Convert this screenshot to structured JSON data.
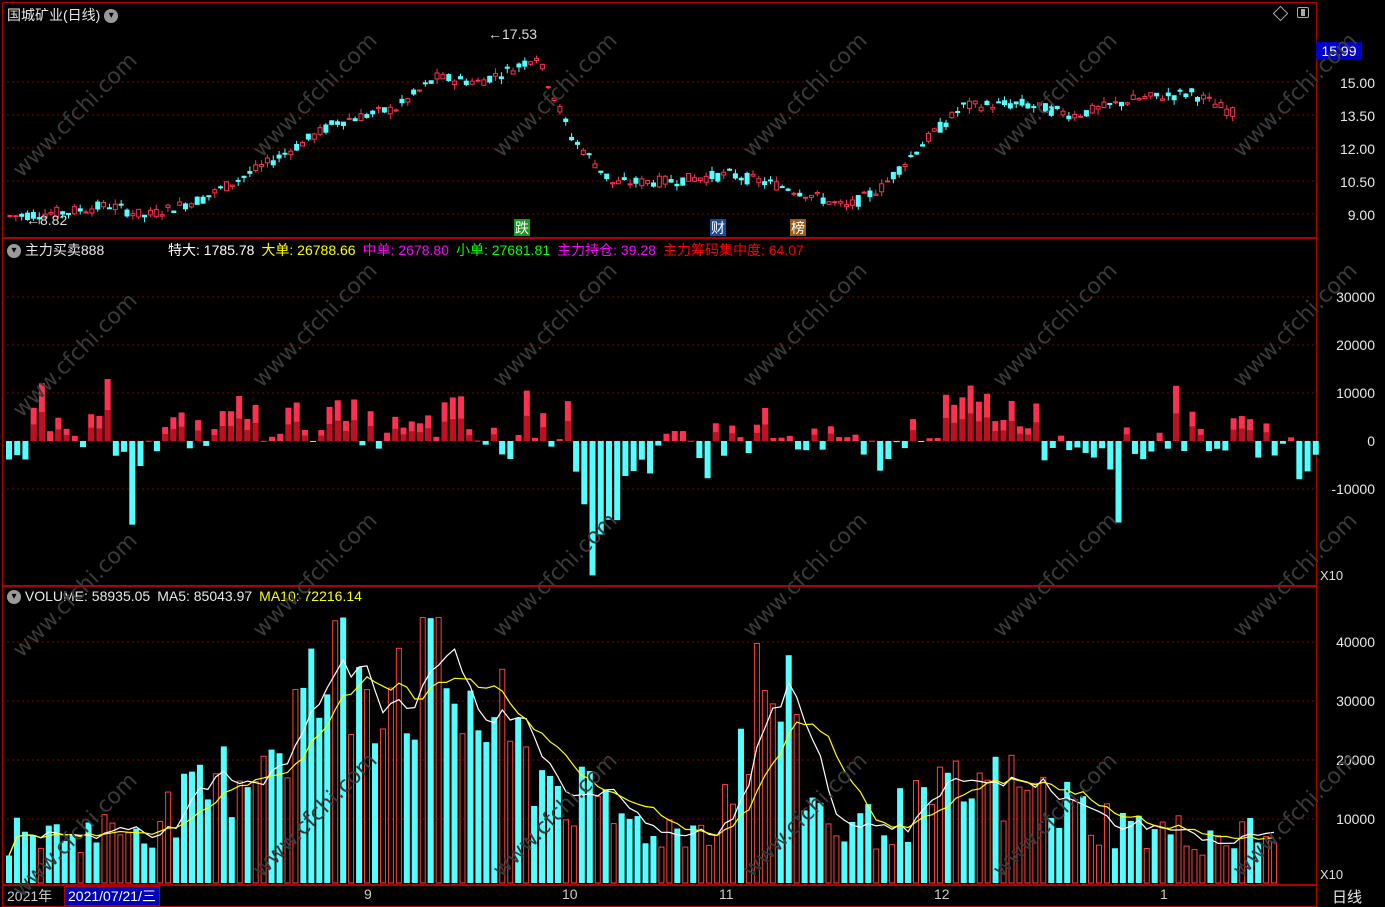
{
  "window": {
    "title": "国城矿业(日线)",
    "period_label": "日线"
  },
  "price_panel": {
    "current_price": "15.99",
    "high_label": "17.53",
    "low_label": "8.82",
    "y_ticks": [
      "15.00",
      "13.50",
      "12.00",
      "10.50",
      "9.00"
    ],
    "events": [
      {
        "label": "跌",
        "color": "#1a9a1a"
      },
      {
        "label": "财",
        "color": "#1a4a9a"
      },
      {
        "label": "榜",
        "color": "#9a5a1a"
      }
    ]
  },
  "indicator_panel": {
    "name": "主力买卖888",
    "values": [
      {
        "label": "特大:",
        "value": "1785.78",
        "color": "#ffffff"
      },
      {
        "label": "大单:",
        "value": "26788.66",
        "color": "#ffff00"
      },
      {
        "label": "中单:",
        "value": "2678.80",
        "color": "#ff00ff"
      },
      {
        "label": "小单:",
        "value": "27681.81",
        "color": "#00ff00"
      },
      {
        "label": "主力持仓:",
        "value": "39.28",
        "color": "#ff00ff"
      },
      {
        "label": "主力筹码集中度:",
        "value": "64.07",
        "color": "#ff0000"
      }
    ],
    "y_ticks": [
      "30000",
      "20000",
      "10000",
      "0",
      "-10000"
    ],
    "scale_label": "X10"
  },
  "volume_panel": {
    "values": [
      {
        "label": "VOLUME:",
        "value": "58935.05",
        "color": "#e8e8e8"
      },
      {
        "label": "MA5:",
        "value": "85043.97",
        "color": "#e8e8e8"
      },
      {
        "label": "MA10:",
        "value": "72216.14",
        "color": "#ffff00"
      }
    ],
    "y_ticks": [
      "40000",
      "30000",
      "20000",
      "10000"
    ],
    "scale_label": "X10"
  },
  "x_axis": {
    "year_label": "2021年",
    "cursor_date": "2021/07/21/三",
    "month_labels": [
      "9",
      "10",
      "11",
      "12",
      "1"
    ]
  },
  "watermark": "www.cfchi.com",
  "colors": {
    "up": "#ff3050",
    "down": "#54ffff",
    "grid": "#800000",
    "border": "#b00000",
    "ma5": "#ffffff",
    "ma10": "#ffff00"
  }
}
